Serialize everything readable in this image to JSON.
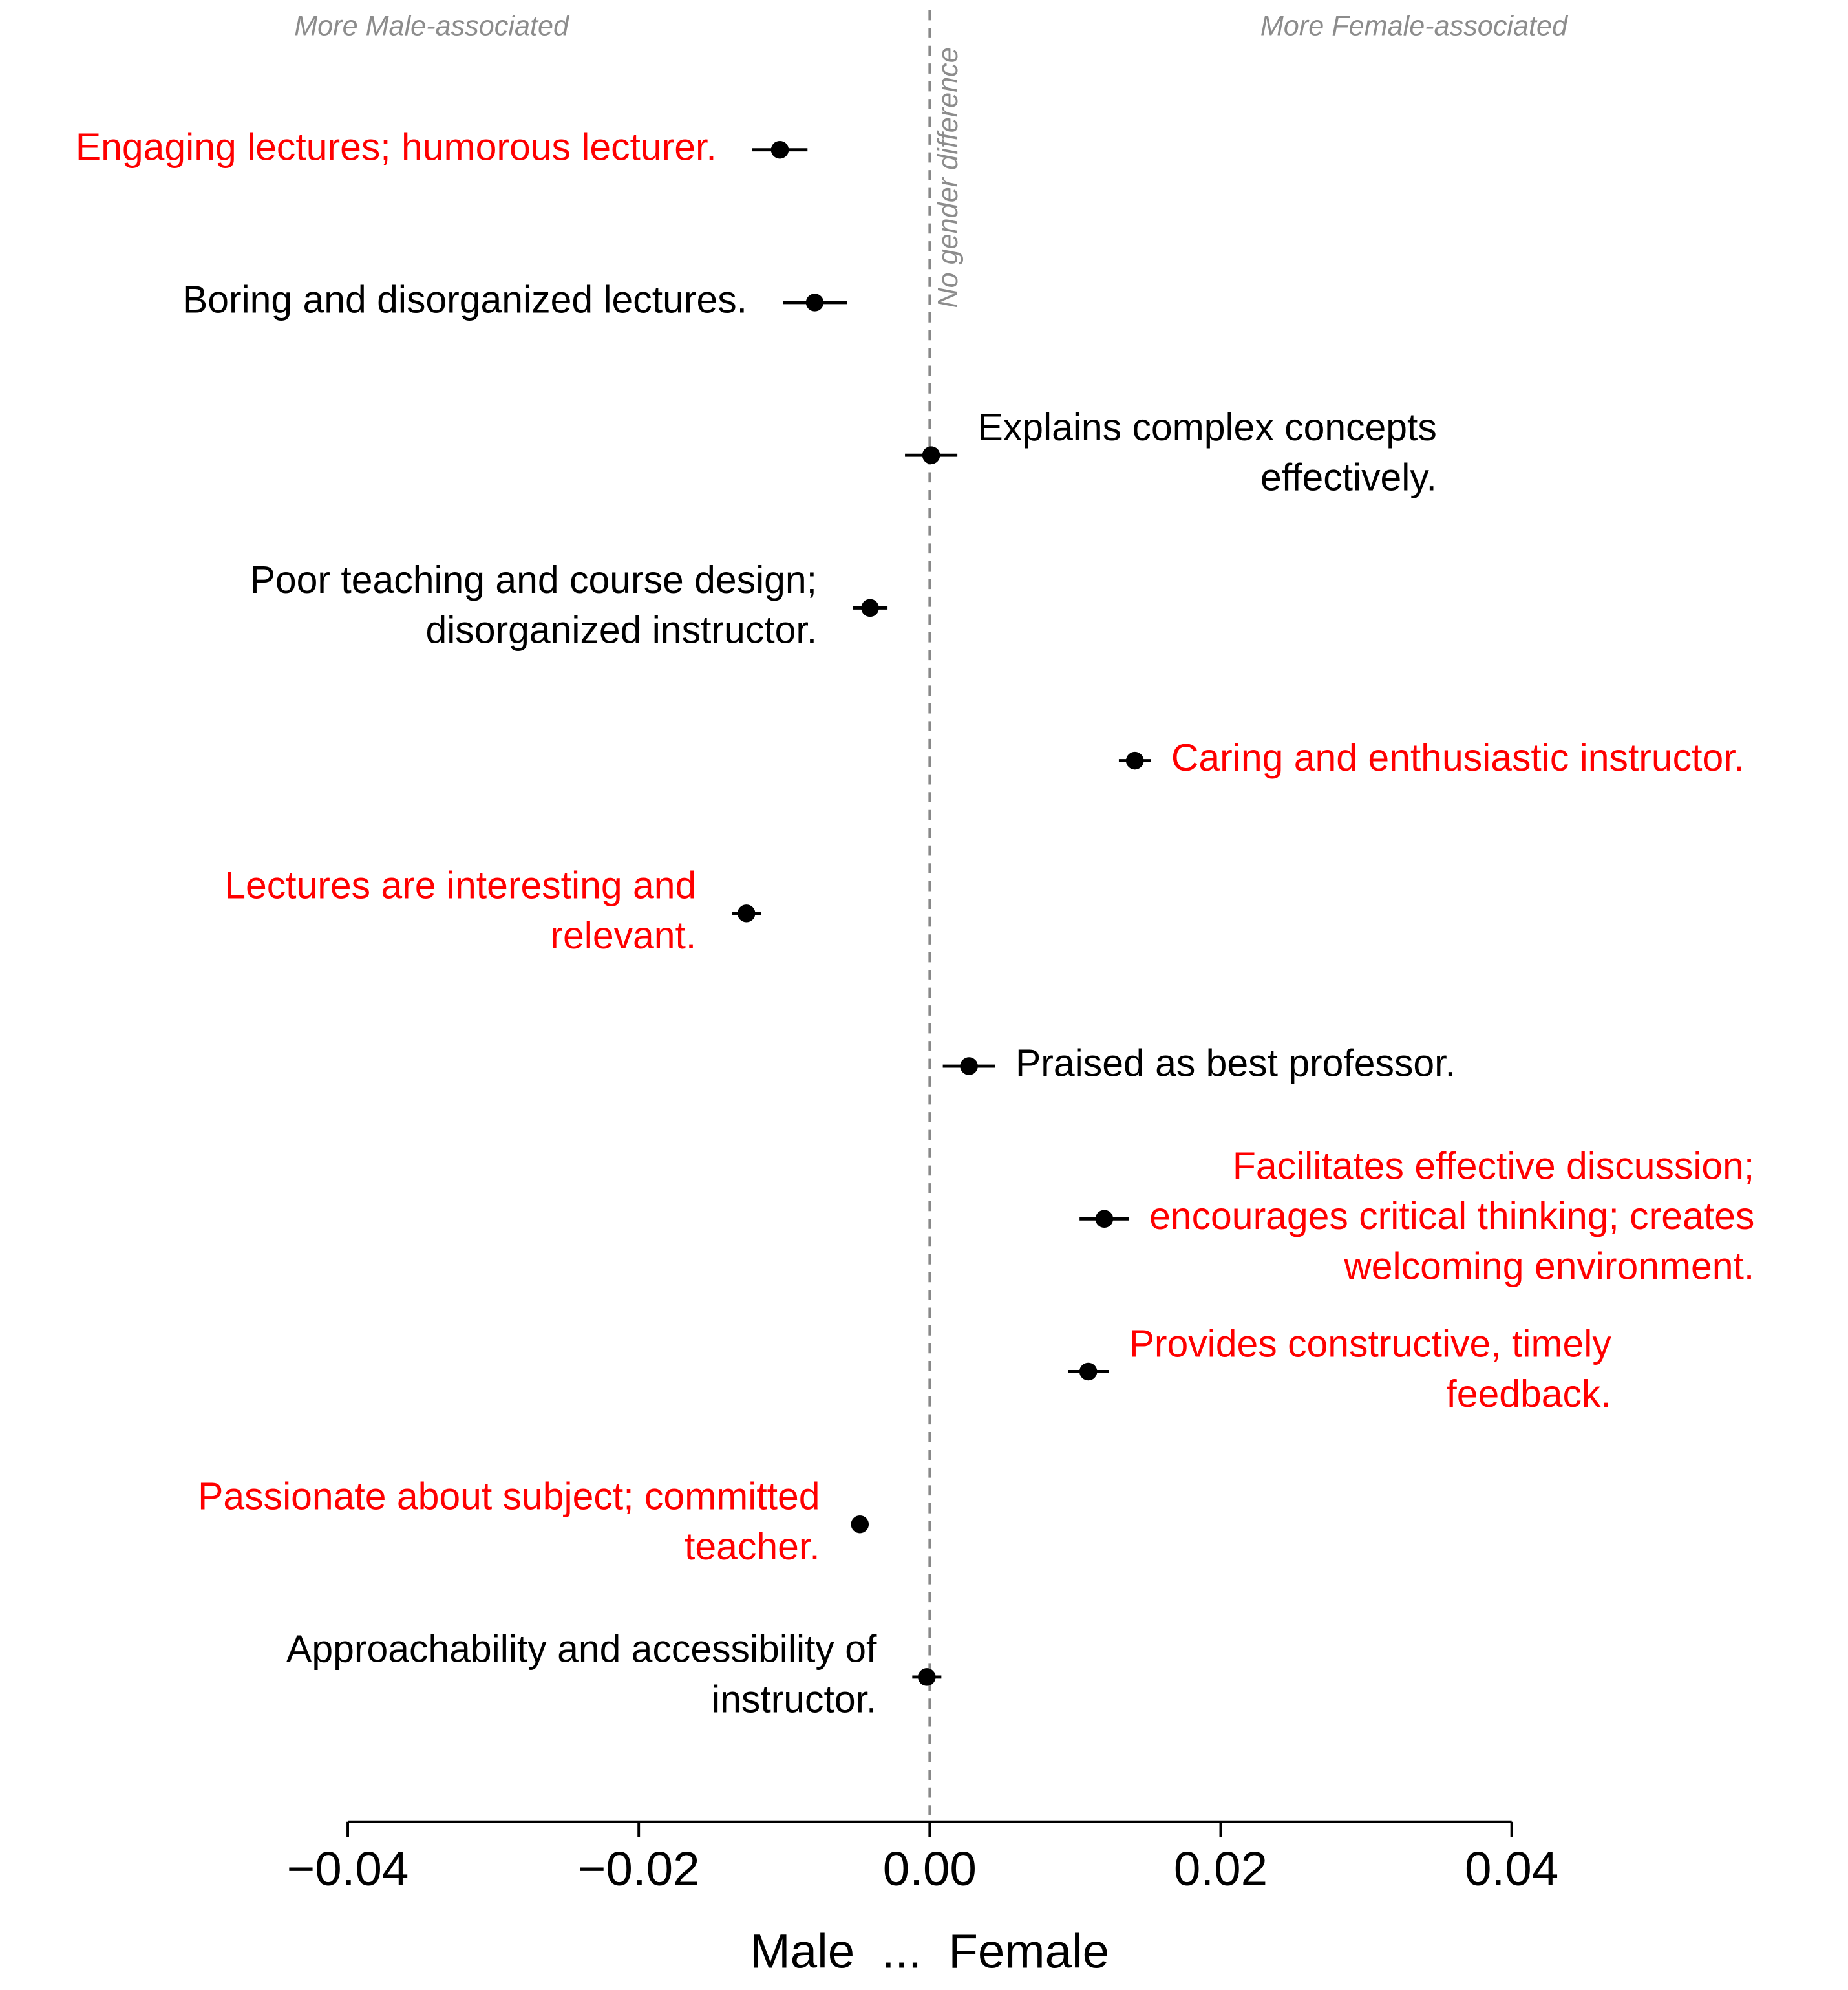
{
  "chart_data": {
    "type": "dot-errorbar",
    "annotations": {
      "left": "More Male-associated",
      "right": "More Female-associated",
      "zero_line": "No gender difference"
    },
    "xlabel": "Male  ...  Female",
    "categories": [
      [
        "Engaging lectures; humorous lecturer."
      ],
      [
        "Boring and disorganized lectures."
      ],
      [
        "Explains complex concepts",
        "effectively."
      ],
      [
        "Poor teaching and course design;",
        "disorganized instructor."
      ],
      [
        "Caring and enthusiastic instructor."
      ],
      [
        "Lectures are interesting and",
        "relevant."
      ],
      [
        "Praised as best professor."
      ],
      [
        "Facilitates effective discussion;",
        "encourages critical thinking; creates",
        "welcoming environment."
      ],
      [
        "Provides constructive, timely",
        "feedback."
      ],
      [
        "Passionate about subject; committed",
        "teacher."
      ],
      [
        "Approachability and accessibility of",
        "instructor."
      ]
    ],
    "values": [
      -0.0103,
      -0.0079,
      0.0001,
      -0.0041,
      0.0141,
      -0.0126,
      0.0027,
      0.012,
      0.0109,
      -0.0048,
      -0.0002
    ],
    "errors": [
      0.0019,
      0.0022,
      0.0018,
      0.0012,
      0.0011,
      0.001,
      0.0018,
      0.0017,
      0.0014,
      0.0003,
      0.001
    ],
    "label_colors": [
      "#ff0000",
      "#000000",
      "#000000",
      "#000000",
      "#ff0000",
      "#ff0000",
      "#000000",
      "#ff0000",
      "#ff0000",
      "#ff0000",
      "#000000"
    ],
    "xlim": [
      -0.04,
      0.04
    ],
    "xticks": [
      {
        "value": -0.04,
        "label": "−0.04"
      },
      {
        "value": -0.02,
        "label": "−0.02"
      },
      {
        "value": 0,
        "label": "0.00"
      },
      0.02,
      0.04
    ]
  }
}
